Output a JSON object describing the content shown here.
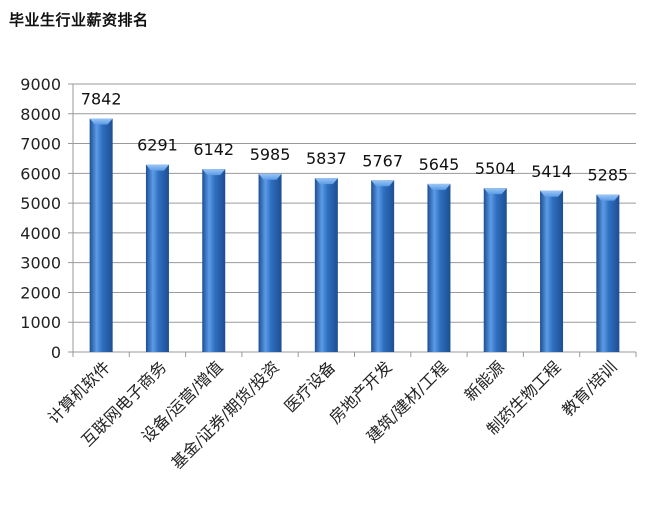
{
  "title": "毕业生行业薪资排名",
  "chart_data": {
    "type": "bar",
    "title": "毕业生行业薪资排名",
    "xlabel": "",
    "ylabel": "",
    "categories": [
      "计算机软件",
      "互联网电子商务",
      "设备/运营/增值",
      "基金/证券/期货/投资",
      "医疗设备",
      "房地产开发",
      "建筑/建材/工程",
      "新能源",
      "制药生物工程",
      "教育/培训"
    ],
    "values": [
      7842,
      6291,
      6142,
      5985,
      5837,
      5767,
      5645,
      5504,
      5414,
      5285
    ],
    "ylim": [
      0,
      9000
    ],
    "yticks": [
      0,
      1000,
      2000,
      3000,
      4000,
      5000,
      6000,
      7000,
      8000,
      9000
    ],
    "grid": true,
    "legend": null,
    "data_labels": true,
    "bar_color": "#2f6fc0",
    "bar_highlight": "#5b9be6",
    "bar_shadow": "#1d4e93"
  }
}
